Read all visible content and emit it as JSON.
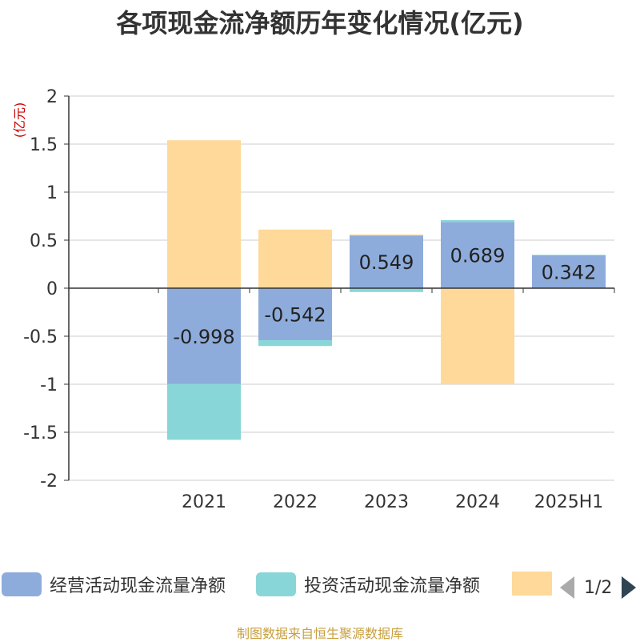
{
  "chart_data": {
    "type": "bar",
    "stacked": true,
    "title": "各项现金流净额历年变化情况(亿元)",
    "ylabel": "(亿元)",
    "categories": [
      "2021",
      "2022",
      "2023",
      "2024",
      "2025H1"
    ],
    "ylim": [
      -2,
      2
    ],
    "yticks": [
      -2,
      -1.5,
      -1,
      -0.5,
      0,
      0.5,
      1,
      1.5,
      2
    ],
    "ytick_labels": [
      "-2",
      "-1.5",
      "-1",
      "-0.5",
      "0",
      "0.5",
      "1",
      "1.5",
      "2"
    ],
    "grid": true,
    "series": [
      {
        "name": "经营活动现金流量净额",
        "color": "#8eacdb",
        "values": [
          -0.998,
          -0.542,
          0.549,
          0.689,
          0.342
        ],
        "labels": [
          "-0.998",
          "-0.542",
          "0.549",
          "0.689",
          "0.342"
        ]
      },
      {
        "name": "投资活动现金流量净额",
        "color": "#88d6d8",
        "values": [
          -0.58,
          -0.06,
          -0.04,
          0.02,
          0.005
        ]
      },
      {
        "name": "",
        "color": "#ffd999",
        "values": [
          1.54,
          0.61,
          0.01,
          -1.0,
          0.0
        ]
      }
    ]
  },
  "legend": {
    "items": [
      {
        "label": "经营活动现金流量净额",
        "color": "#8eacdb"
      },
      {
        "label": "投资活动现金流量净额",
        "color": "#88d6d8"
      },
      {
        "label": "",
        "color": "#ffd999"
      }
    ],
    "page": "1/2"
  },
  "source": "制图数据来自恒生聚源数据库"
}
